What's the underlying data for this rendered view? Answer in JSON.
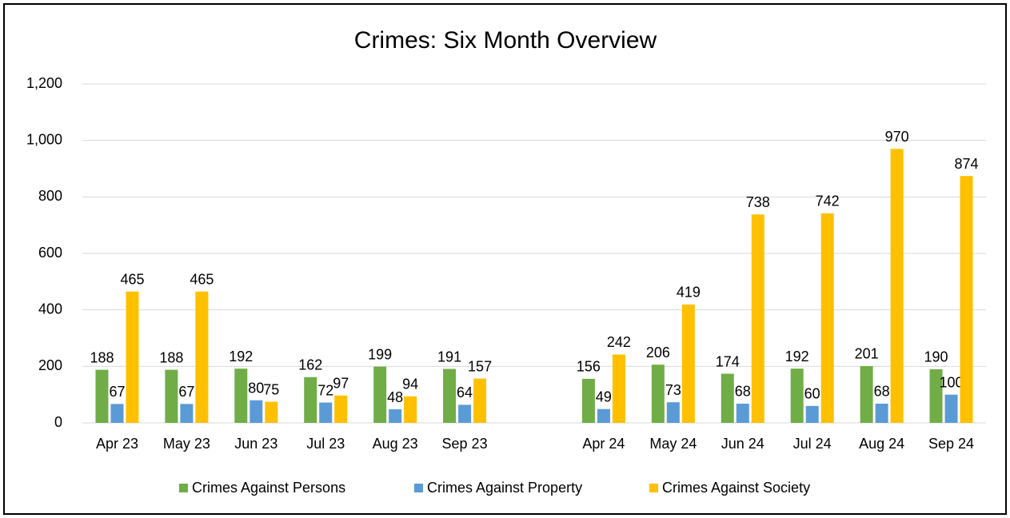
{
  "chart_data": {
    "type": "bar",
    "title": "Crimes: Six Month Overview",
    "categories": [
      "Apr 23",
      "May 23",
      "Jun 23",
      "Jul 23",
      "Aug 23",
      "Sep 23",
      null,
      "Apr 24",
      "May 24",
      "Jun 24",
      "Jul 24",
      "Aug 24",
      "Sep 24"
    ],
    "series": [
      {
        "name": "Crimes Against Persons",
        "color": "#70ad47",
        "values": [
          188,
          188,
          192,
          162,
          199,
          191,
          null,
          156,
          206,
          174,
          192,
          201,
          190
        ]
      },
      {
        "name": "Crimes Against Property",
        "color": "#5b9bd5",
        "values": [
          67,
          67,
          80,
          72,
          48,
          64,
          null,
          49,
          73,
          68,
          60,
          68,
          100
        ]
      },
      {
        "name": "Crimes Against Society",
        "color": "#ffc000",
        "values": [
          465,
          465,
          75,
          97,
          94,
          157,
          null,
          242,
          419,
          738,
          742,
          970,
          874
        ]
      }
    ],
    "ylim": [
      0,
      1200
    ],
    "yticks": [
      0,
      200,
      400,
      600,
      800,
      {
        "value": 1000,
        "label": "1,000"
      },
      {
        "value": 1200,
        "label": "1,200"
      }
    ],
    "grid": true,
    "legend": "bottom"
  }
}
